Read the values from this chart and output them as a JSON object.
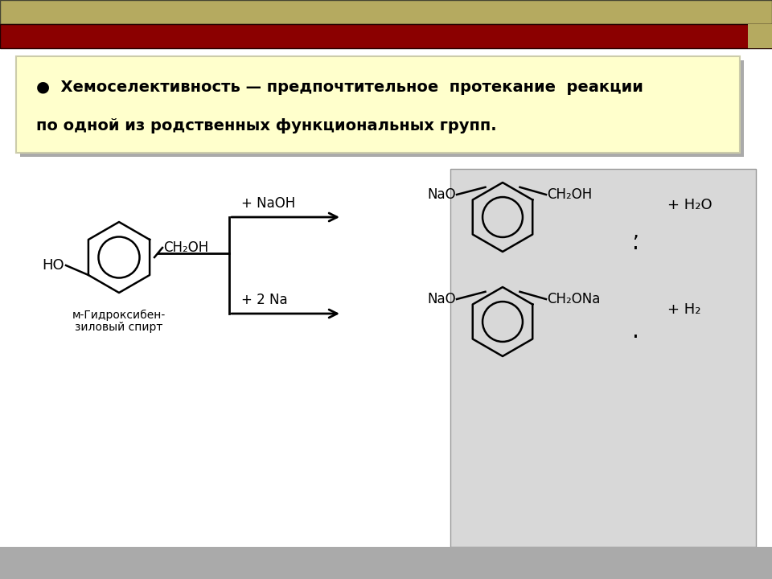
{
  "bg_color": "#ffffff",
  "header_stripe1_color": "#b5aa60",
  "header_stripe2_color": "#8b0000",
  "text_box_color": "#ffffcc",
  "text_box_shadow": "#aaaaaa",
  "bullet_text_line1": "●  Хемоселективность — предпочтительное  протекание  реакции",
  "bullet_text_line2": "по одной из родственных функциональных групп.",
  "reactant_label_line1": "м-Гидроксибен-",
  "reactant_label_line2": "зиловый спирт",
  "reaction1_label": "+ NaOH",
  "reaction2_label": "+ 2 Na",
  "product1_byproduct": "+ H₂O",
  "product2_byproduct": "+ H₂",
  "right_panel_bg": "#d8d8d8",
  "right_panel_border": "#999999"
}
